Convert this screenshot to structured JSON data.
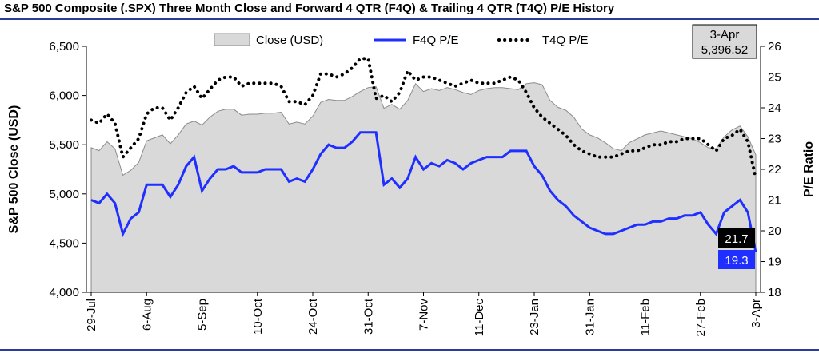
{
  "colors": {
    "rule": "#2b3b9a",
    "area_fill": "#d9d9d9",
    "area_stroke": "#8c8c8c",
    "f4q_line": "#1f2fff",
    "t4q_line": "#000000",
    "f4q_badge": "#1f2fff",
    "t4q_badge": "#000000"
  },
  "chart_data": {
    "type": "line",
    "title": "S&P 500 Composite (.SPX) Three Month Close and Forward 4 QTR (F4Q) & Trailing 4 QTR (T4Q) P/E History",
    "y_left_label": "S&P 500 Close (USD)",
    "y_right_label": "P/E Ratio",
    "y_left_lim": [
      4000,
      6500
    ],
    "y_left_ticks": [
      "4,000",
      "4,500",
      "5,000",
      "5,500",
      "6,000",
      "6,500"
    ],
    "y_right_lim": [
      18,
      26
    ],
    "y_right_ticks": [
      "18",
      "19",
      "20",
      "21",
      "22",
      "23",
      "24",
      "25",
      "26"
    ],
    "x_tick_labels": [
      "29-Jul",
      "6-Aug",
      "5-Sep",
      "10-Oct",
      "24-Oct",
      "31-Oct",
      "7-Nov",
      "11-Dec",
      "23-Jan",
      "31-Jan",
      "11-Feb",
      "27-Feb",
      "3-Apr"
    ],
    "x_tick_positions": [
      0,
      7,
      14,
      21,
      28,
      35,
      42,
      49,
      56,
      63,
      70,
      77,
      84
    ],
    "grid": false,
    "legend_position": "top",
    "series": [
      {
        "name": "Close (USD)",
        "style": "area",
        "axis": "left",
        "values": [
          5470,
          5440,
          5530,
          5460,
          5190,
          5240,
          5320,
          5540,
          5570,
          5600,
          5510,
          5600,
          5710,
          5740,
          5700,
          5780,
          5840,
          5860,
          5860,
          5800,
          5810,
          5810,
          5820,
          5820,
          5830,
          5710,
          5730,
          5710,
          5790,
          5930,
          5960,
          5950,
          5950,
          5990,
          6040,
          6080,
          6090,
          5870,
          5910,
          5860,
          5950,
          6120,
          6040,
          6070,
          6050,
          6080,
          6060,
          6030,
          6010,
          6050,
          6070,
          6080,
          6080,
          6070,
          6060,
          6120,
          6130,
          6110,
          5950,
          5880,
          5850,
          5780,
          5660,
          5600,
          5570,
          5520,
          5460,
          5440,
          5520,
          5560,
          5600,
          5620,
          5640,
          5620,
          5600,
          5580,
          5560,
          5520,
          5470,
          5460,
          5580,
          5650,
          5690,
          5580,
          5397
        ]
      },
      {
        "name": "F4Q P/E",
        "style": "solid",
        "axis": "right",
        "values": [
          21.0,
          20.9,
          21.2,
          20.9,
          19.9,
          20.4,
          20.6,
          21.5,
          21.5,
          21.5,
          21.1,
          21.5,
          22.1,
          22.4,
          21.3,
          21.7,
          22.0,
          22.0,
          22.1,
          21.9,
          21.9,
          21.9,
          22.0,
          22.0,
          22.0,
          21.6,
          21.7,
          21.6,
          22.0,
          22.5,
          22.8,
          22.7,
          22.7,
          22.9,
          23.2,
          23.2,
          23.2,
          21.5,
          21.7,
          21.4,
          21.7,
          22.4,
          22.0,
          22.2,
          22.1,
          22.3,
          22.2,
          22.0,
          22.2,
          22.3,
          22.4,
          22.4,
          22.4,
          22.6,
          22.6,
          22.6,
          22.1,
          21.8,
          21.3,
          21.0,
          20.8,
          20.5,
          20.3,
          20.1,
          20.0,
          19.9,
          19.9,
          20.0,
          20.1,
          20.2,
          20.2,
          20.3,
          20.3,
          20.4,
          20.4,
          20.5,
          20.5,
          20.6,
          20.2,
          19.9,
          20.6,
          20.8,
          21.0,
          20.6,
          19.3
        ]
      },
      {
        "name": "T4Q P/E",
        "style": "dotted",
        "axis": "right",
        "values": [
          23.6,
          23.5,
          23.8,
          23.5,
          22.4,
          22.7,
          23.0,
          23.8,
          24.0,
          24.0,
          23.6,
          24.0,
          24.5,
          24.7,
          24.3,
          24.6,
          24.9,
          25.0,
          25.0,
          24.7,
          24.8,
          24.8,
          24.8,
          24.8,
          24.7,
          24.2,
          24.2,
          24.1,
          24.4,
          25.1,
          25.1,
          25.0,
          25.1,
          25.3,
          25.6,
          25.6,
          24.3,
          24.4,
          24.2,
          24.5,
          25.2,
          24.9,
          25.0,
          25.0,
          24.9,
          24.8,
          24.7,
          24.8,
          24.9,
          24.8,
          24.8,
          24.8,
          24.9,
          25.0,
          24.9,
          24.5,
          24.0,
          23.7,
          23.5,
          23.3,
          23.1,
          22.8,
          22.6,
          22.5,
          22.4,
          22.4,
          22.4,
          22.5,
          22.6,
          22.6,
          22.7,
          22.8,
          22.8,
          22.9,
          22.9,
          23.0,
          23.0,
          23.0,
          22.8,
          22.6,
          23.0,
          23.1,
          23.3,
          22.9,
          21.7
        ]
      }
    ],
    "latest_box": {
      "date": "3-Apr",
      "close": "5,396.52"
    },
    "end_labels": {
      "t4q": "21.7",
      "f4q": "19.3"
    }
  }
}
